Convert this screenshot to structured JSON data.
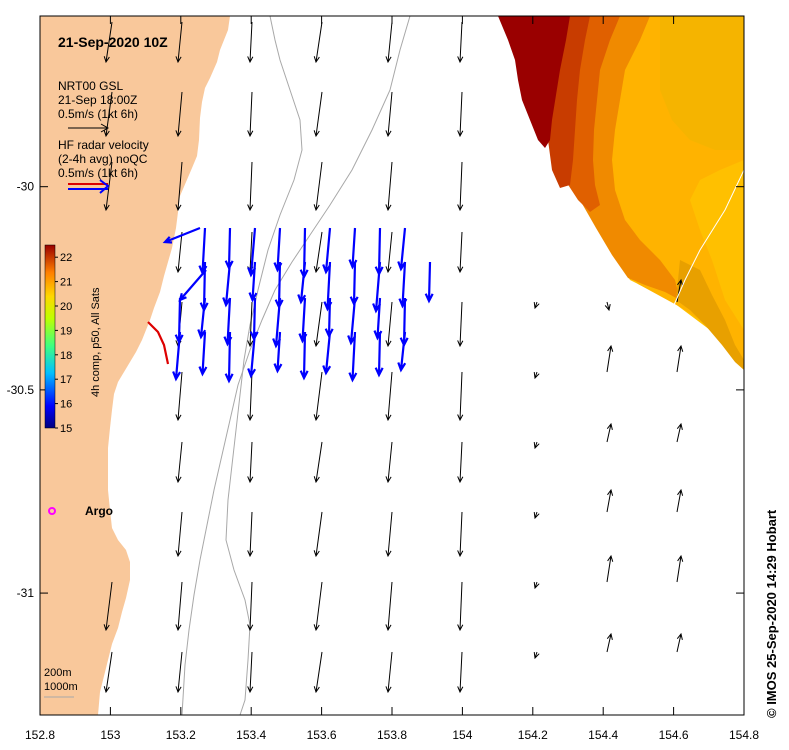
{
  "map": {
    "title": "21-Sep-2020 10Z",
    "x_ticks": [
      {
        "value": 152.8,
        "label": "152.8"
      },
      {
        "value": 153.0,
        "label": "153"
      },
      {
        "value": 153.2,
        "label": "153.2"
      },
      {
        "value": 153.4,
        "label": "153.4"
      },
      {
        "value": 153.6,
        "label": "153.6"
      },
      {
        "value": 153.8,
        "label": "153.8"
      },
      {
        "value": 154.0,
        "label": "154"
      },
      {
        "value": 154.2,
        "label": "154.2"
      },
      {
        "value": 154.4,
        "label": "154.4"
      },
      {
        "value": 154.6,
        "label": "154.6"
      },
      {
        "value": 154.8,
        "label": "154.8"
      }
    ],
    "y_ticks": [
      {
        "value": -30.0,
        "label": "-30"
      },
      {
        "value": -30.5,
        "label": "-30.5"
      },
      {
        "value": -31.0,
        "label": "-31"
      }
    ],
    "xlim": [
      152.8,
      154.8
    ],
    "ylim": [
      -31.3,
      -29.58
    ],
    "credit": "© IMOS 25-Sep-2020 14:29 Hobart",
    "argo_label": "Argo",
    "argo_position": {
      "lon": 152.83,
      "lat": -30.8
    },
    "isobath_labels": [
      "200m",
      "1000m"
    ]
  },
  "legend": {
    "model_name": "NRT00 GSL",
    "model_time": "21-Sep 18:00Z",
    "model_scale": "0.5m/s (1kt 6h)",
    "radar_line1": "HF radar velocity",
    "radar_line2": "(2-4h avg) noQC",
    "radar_scale": "0.5m/s (1kt 6h)",
    "colorbar_title": "4h comp, p50, All Sats",
    "colorbar_min": 15,
    "colorbar_max": 22.5,
    "colorbar_ticks": [
      "15",
      "16",
      "17",
      "18",
      "19",
      "20",
      "21",
      "22"
    ],
    "colors": {
      "land": "#f9c89b",
      "radar_arrow": "#0000ff",
      "model_arrow": "#000000",
      "argo": "#ff00ff",
      "sst_hot": "#9a0000"
    }
  }
}
